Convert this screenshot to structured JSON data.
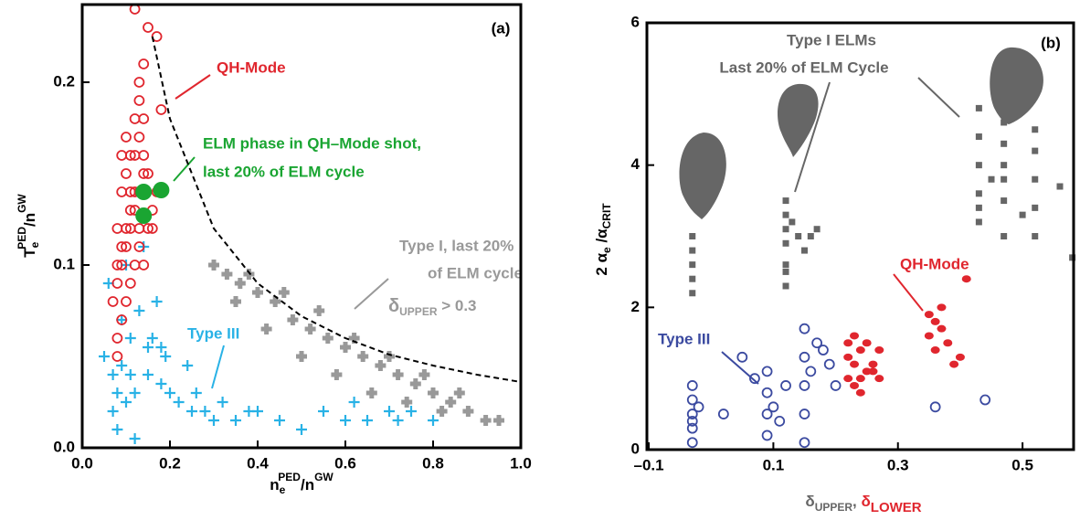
{
  "chart_data": [
    {
      "type": "scatter",
      "panel_label": "(a)",
      "xlabel_parts": [
        "n",
        "e",
        "PED",
        "/n",
        "GW"
      ],
      "ylabel_parts": [
        "T",
        "e",
        "PED",
        "/n",
        "GW"
      ],
      "xlim": [
        0,
        1.0
      ],
      "ylim": [
        0,
        0.2425
      ],
      "xticks": [
        {
          "value": 0,
          "label": "0.0"
        },
        0.2,
        0.4,
        0.6,
        0.8,
        {
          "value": 1,
          "label": "1.0"
        }
      ],
      "yticks": [
        {
          "value": 0,
          "label": "0.0"
        },
        0.1,
        0.2
      ],
      "annotations": [
        {
          "text": "QH-Mode",
          "color": "#e0262e"
        },
        {
          "text": "ELM phase in QH–Mode shot,",
          "color": "#1aa532"
        },
        {
          "text": "last 20% of ELM cycle",
          "color": "#1aa532"
        },
        {
          "text": "Type I, last 20%",
          "color": "#999999"
        },
        {
          "text": "of ELM cycle",
          "color": "#999999"
        },
        {
          "text": "δ",
          "color": "#999999"
        },
        {
          "text": "UPPER",
          "color": "#999999"
        },
        {
          "text": " > 0.3",
          "color": "#999999"
        },
        {
          "text": "Type III",
          "color": "#29b2e6"
        }
      ],
      "series": [
        {
          "color": "#999999",
          "marker": "fatplus",
          "x": [
            0.3,
            0.33,
            0.36,
            0.4,
            0.44,
            0.48,
            0.52,
            0.56,
            0.6,
            0.64,
            0.68,
            0.72,
            0.76,
            0.8,
            0.84,
            0.88,
            0.92,
            0.95,
            0.35,
            0.42,
            0.5,
            0.58,
            0.66,
            0.74,
            0.82,
            0.38,
            0.46,
            0.54,
            0.62,
            0.7,
            0.78,
            0.86
          ],
          "values": [
            0.1,
            0.095,
            0.09,
            0.085,
            0.08,
            0.07,
            0.065,
            0.06,
            0.055,
            0.05,
            0.045,
            0.04,
            0.035,
            0.03,
            0.025,
            0.02,
            0.015,
            0.015,
            0.08,
            0.065,
            0.05,
            0.04,
            0.03,
            0.025,
            0.02,
            0.095,
            0.085,
            0.075,
            0.06,
            0.05,
            0.04,
            0.03
          ]
        },
        {
          "color": "#29b2e6",
          "marker": "plus",
          "x": [
            0.05,
            0.07,
            0.08,
            0.1,
            0.12,
            0.15,
            0.18,
            0.2,
            0.22,
            0.25,
            0.28,
            0.3,
            0.35,
            0.4,
            0.45,
            0.5,
            0.55,
            0.6,
            0.65,
            0.7,
            0.75,
            0.8,
            0.06,
            0.09,
            0.11,
            0.13,
            0.16,
            0.19,
            0.24,
            0.1,
            0.14,
            0.18,
            0.08,
            0.12,
            0.07,
            0.17,
            0.26,
            0.32,
            0.38,
            0.62,
            0.72,
            0.09,
            0.11,
            0.15
          ],
          "values": [
            0.05,
            0.04,
            0.03,
            0.025,
            0.03,
            0.04,
            0.035,
            0.03,
            0.025,
            0.02,
            0.02,
            0.015,
            0.015,
            0.02,
            0.015,
            0.01,
            0.02,
            0.015,
            0.015,
            0.02,
            0.02,
            0.015,
            0.09,
            0.07,
            0.06,
            0.075,
            0.06,
            0.05,
            0.045,
            0.1,
            0.11,
            0.055,
            0.01,
            0.005,
            0.02,
            0.08,
            0.03,
            0.025,
            0.02,
            0.025,
            0.015,
            0.045,
            0.04,
            0.055
          ]
        },
        {
          "color": "#e0262e",
          "marker": "circle-open",
          "x": [
            0.07,
            0.08,
            0.09,
            0.1,
            0.11,
            0.12,
            0.13,
            0.14,
            0.08,
            0.09,
            0.1,
            0.11,
            0.12,
            0.13,
            0.14,
            0.15,
            0.09,
            0.1,
            0.11,
            0.12,
            0.13,
            0.08,
            0.09,
            0.1,
            0.11,
            0.12,
            0.13,
            0.16,
            0.17,
            0.15,
            0.14,
            0.13,
            0.12,
            0.11,
            0.1,
            0.09,
            0.08,
            0.12,
            0.14,
            0.17,
            0.15,
            0.18,
            0.13,
            0.16,
            0.08,
            0.14
          ],
          "values": [
            0.08,
            0.09,
            0.1,
            0.11,
            0.12,
            0.13,
            0.14,
            0.15,
            0.12,
            0.14,
            0.15,
            0.16,
            0.16,
            0.17,
            0.16,
            0.15,
            0.07,
            0.08,
            0.09,
            0.1,
            0.11,
            0.1,
            0.11,
            0.12,
            0.13,
            0.14,
            0.12,
            0.13,
            0.14,
            0.12,
            0.18,
            0.19,
            0.18,
            0.14,
            0.17,
            0.16,
            0.06,
            0.24,
            0.21,
            0.225,
            0.23,
            0.185,
            0.2,
            0.12,
            0.05,
            0.1
          ]
        },
        {
          "color": "#1aa532",
          "marker": "circle-big",
          "x": [
            0.14,
            0.18,
            0.14
          ],
          "values": [
            0.14,
            0.141,
            0.127
          ]
        },
        {
          "color": "#000000",
          "marker": "dashed-line",
          "x": [
            0.16,
            0.2,
            0.3,
            0.4,
            0.5,
            0.6,
            0.7,
            0.8,
            0.9,
            1.0
          ],
          "values": [
            0.225,
            0.18,
            0.12,
            0.09,
            0.072,
            0.06,
            0.051,
            0.045,
            0.04,
            0.036
          ]
        }
      ]
    },
    {
      "type": "scatter",
      "panel_label": "(b)",
      "xlabel_parts": [
        "δ",
        "UPPER",
        ", ",
        "δ",
        "LOWER"
      ],
      "ylabel_parts": [
        "2 α",
        "e",
        " /α",
        "CRIT"
      ],
      "xlim": [
        -0.103,
        0.582
      ],
      "ylim": [
        0,
        6
      ],
      "xticks": [
        {
          "value": -0.1,
          "label": "–0.1"
        },
        0.1,
        0.3,
        0.5
      ],
      "yticks": [
        0,
        2,
        4,
        6
      ],
      "annotations": [
        {
          "text": "Type I ELMs",
          "color": "#666666"
        },
        {
          "text": "Last 20% of ELM Cycle",
          "color": "#666666"
        }
      ],
      "series": [
        {
          "color": "#666666",
          "marker": "square",
          "x": [
            -0.03,
            -0.03,
            -0.03,
            -0.03,
            -0.03,
            0.12,
            0.12,
            0.12,
            0.12,
            0.12,
            0.12,
            0.12,
            0.13,
            0.14,
            0.15,
            0.16,
            0.17,
            0.43,
            0.43,
            0.43,
            0.43,
            0.43,
            0.43,
            0.47,
            0.47,
            0.47,
            0.47,
            0.47,
            0.47,
            0.52,
            0.52,
            0.52,
            0.52,
            0.52,
            0.56,
            0.58,
            0.45,
            0.5
          ],
          "values": [
            2.2,
            2.4,
            2.6,
            2.8,
            3.0,
            2.3,
            2.6,
            2.9,
            3.1,
            3.3,
            3.5,
            2.5,
            3.2,
            3.0,
            2.8,
            3.0,
            3.1,
            3.2,
            3.6,
            4.0,
            4.4,
            4.8,
            3.4,
            3.0,
            3.5,
            4.0,
            4.3,
            4.6,
            3.8,
            3.0,
            3.4,
            3.8,
            4.2,
            4.5,
            3.7,
            2.7,
            3.8,
            3.3
          ]
        },
        {
          "name": "QH-Mode",
          "color": "#e0262e",
          "marker": "ellipse",
          "x": [
            0.22,
            0.23,
            0.24,
            0.25,
            0.22,
            0.23,
            0.24,
            0.25,
            0.26,
            0.27,
            0.23,
            0.24,
            0.27,
            0.35,
            0.36,
            0.37,
            0.36,
            0.38,
            0.39,
            0.4,
            0.41,
            0.37,
            0.35,
            0.26,
            0.22
          ],
          "values": [
            1.0,
            1.2,
            1.4,
            1.1,
            1.3,
            0.9,
            1.0,
            1.5,
            1.2,
            1.0,
            1.6,
            0.8,
            1.4,
            1.6,
            1.8,
            2.0,
            1.4,
            1.5,
            1.2,
            1.3,
            2.4,
            1.7,
            1.9,
            1.1,
            1.5
          ]
        },
        {
          "name": "Type III",
          "color": "#3b4aa0",
          "marker": "circle-open",
          "x": [
            -0.03,
            -0.03,
            -0.03,
            -0.03,
            -0.03,
            -0.03,
            -0.02,
            0.09,
            0.09,
            0.09,
            0.09,
            0.1,
            0.11,
            0.12,
            0.15,
            0.15,
            0.15,
            0.15,
            0.15,
            0.16,
            0.17,
            0.19,
            0.2,
            0.07,
            0.05,
            0.36,
            0.44,
            0.02,
            0.18
          ],
          "values": [
            0.1,
            0.3,
            0.5,
            0.7,
            0.9,
            0.4,
            0.6,
            0.2,
            0.5,
            0.8,
            1.1,
            0.6,
            0.4,
            0.9,
            0.1,
            0.5,
            0.9,
            1.3,
            1.7,
            1.1,
            1.5,
            1.2,
            0.9,
            1.0,
            1.3,
            0.6,
            0.7,
            0.5,
            1.4
          ]
        }
      ]
    }
  ]
}
